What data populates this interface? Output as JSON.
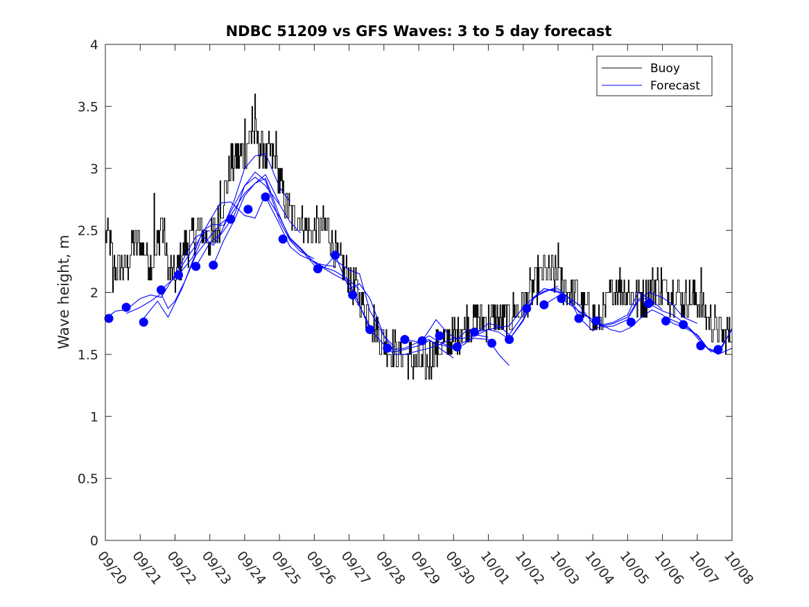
{
  "chart_data": {
    "type": "line",
    "title": "NDBC 51209 vs GFS Waves: 3 to 5 day forecast",
    "xlabel": "",
    "ylabel": "Wave height, m",
    "xlim": [
      0,
      18
    ],
    "ylim": [
      0,
      4
    ],
    "yticks": [
      0,
      0.5,
      1,
      1.5,
      2,
      2.5,
      3,
      3.5,
      4
    ],
    "ytick_labels": [
      "0",
      "0.5",
      "1",
      "1.5",
      "2",
      "2.5",
      "3",
      "3.5",
      "4"
    ],
    "xticks": [
      0,
      1,
      2,
      3,
      4,
      5,
      6,
      7,
      8,
      9,
      10,
      11,
      12,
      13,
      14,
      15,
      16,
      17,
      18
    ],
    "xtick_labels": [
      "09/20",
      "09/21",
      "09/22",
      "09/23",
      "09/24",
      "09/25",
      "09/26",
      "09/27",
      "09/28",
      "09/29",
      "09/30",
      "10/01",
      "10/02",
      "10/03",
      "10/04",
      "10/05",
      "10/06",
      "10/07",
      "10/08"
    ],
    "legend": {
      "location": "top-right",
      "entries": [
        {
          "name": "Buoy",
          "color": "#000000"
        },
        {
          "name": "Forecast",
          "color": "#0000ff"
        }
      ]
    },
    "colors": {
      "buoy": "#000000",
      "forecast": "#0000ff",
      "markers": "#0000ff"
    },
    "buoy": {
      "name": "Buoy",
      "anchors": [
        [
          0,
          2.5
        ],
        [
          0.3,
          2.2
        ],
        [
          0.6,
          2.2
        ],
        [
          0.8,
          2.4
        ],
        [
          1.0,
          2.4
        ],
        [
          1.2,
          2.3
        ],
        [
          1.4,
          2.2
        ],
        [
          1.6,
          2.6
        ],
        [
          1.8,
          2.2
        ],
        [
          2.0,
          2.1
        ],
        [
          2.2,
          2.3
        ],
        [
          2.4,
          2.4
        ],
        [
          2.6,
          2.5
        ],
        [
          2.8,
          2.5
        ],
        [
          3.0,
          2.4
        ],
        [
          3.2,
          2.5
        ],
        [
          3.4,
          2.8
        ],
        [
          3.6,
          3.0
        ],
        [
          3.8,
          3.1
        ],
        [
          4.0,
          3.1
        ],
        [
          4.2,
          3.3
        ],
        [
          4.4,
          3.2
        ],
        [
          4.6,
          3.1
        ],
        [
          4.8,
          3.1
        ],
        [
          5.0,
          2.9
        ],
        [
          5.2,
          2.7
        ],
        [
          5.4,
          2.6
        ],
        [
          5.6,
          2.6
        ],
        [
          5.8,
          2.5
        ],
        [
          6.0,
          2.5
        ],
        [
          6.2,
          2.5
        ],
        [
          6.4,
          2.5
        ],
        [
          6.6,
          2.3
        ],
        [
          6.8,
          2.2
        ],
        [
          7.0,
          2.1
        ],
        [
          7.2,
          2.0
        ],
        [
          7.4,
          1.9
        ],
        [
          7.6,
          1.8
        ],
        [
          7.8,
          1.7
        ],
        [
          8.0,
          1.6
        ],
        [
          8.2,
          1.55
        ],
        [
          8.4,
          1.5
        ],
        [
          8.6,
          1.5
        ],
        [
          8.8,
          1.45
        ],
        [
          9.0,
          1.45
        ],
        [
          9.2,
          1.4
        ],
        [
          9.4,
          1.5
        ],
        [
          9.6,
          1.55
        ],
        [
          9.8,
          1.6
        ],
        [
          10.0,
          1.65
        ],
        [
          10.2,
          1.7
        ],
        [
          10.4,
          1.75
        ],
        [
          10.6,
          1.8
        ],
        [
          10.8,
          1.8
        ],
        [
          11.0,
          1.8
        ],
        [
          11.2,
          1.8
        ],
        [
          11.4,
          1.75
        ],
        [
          11.6,
          1.8
        ],
        [
          11.8,
          1.85
        ],
        [
          12.0,
          1.9
        ],
        [
          12.2,
          2.0
        ],
        [
          12.4,
          2.1
        ],
        [
          12.6,
          2.15
        ],
        [
          12.8,
          2.15
        ],
        [
          13.0,
          2.1
        ],
        [
          13.2,
          2.05
        ],
        [
          13.4,
          2.0
        ],
        [
          13.6,
          1.95
        ],
        [
          13.8,
          1.85
        ],
        [
          14.0,
          1.8
        ],
        [
          14.2,
          1.75
        ],
        [
          14.4,
          1.9
        ],
        [
          14.6,
          2.05
        ],
        [
          14.8,
          2.05
        ],
        [
          15.0,
          2.0
        ],
        [
          15.2,
          1.95
        ],
        [
          15.4,
          1.95
        ],
        [
          15.6,
          2.0
        ],
        [
          15.8,
          2.05
        ],
        [
          16.0,
          2.05
        ],
        [
          16.2,
          2.0
        ],
        [
          16.4,
          2.0
        ],
        [
          16.6,
          1.95
        ],
        [
          16.8,
          1.95
        ],
        [
          17.0,
          1.95
        ],
        [
          17.2,
          1.85
        ],
        [
          17.4,
          1.75
        ],
        [
          17.6,
          1.7
        ],
        [
          17.8,
          1.65
        ],
        [
          18.0,
          1.7
        ]
      ],
      "spikes": [
        [
          4.3,
          3.6
        ],
        [
          4.2,
          3.5
        ],
        [
          4.0,
          3.4
        ],
        [
          4.55,
          3.2
        ],
        [
          4.9,
          3.3
        ],
        [
          1.4,
          2.8
        ],
        [
          3.3,
          2.9
        ],
        [
          3.6,
          3.2
        ],
        [
          12.6,
          2.3
        ],
        [
          13.0,
          2.4
        ],
        [
          17.1,
          2.2
        ],
        [
          9.2,
          1.3
        ],
        [
          9.3,
          1.3
        ],
        [
          0.2,
          2.0
        ]
      ],
      "noise_amplitude": 0.1
    },
    "forecast_runs": [
      {
        "name": "Forecast",
        "x": [
          0,
          0.3,
          0.6,
          1.0,
          1.3,
          1.6,
          2.0,
          2.3,
          2.6,
          3.0
        ],
        "y": [
          1.79,
          1.85,
          1.86,
          1.95,
          1.98,
          1.96,
          2.14,
          2.3,
          2.45,
          2.5
        ]
      },
      {
        "name": "Forecast",
        "x": [
          0.6,
          1.0,
          1.3,
          1.6,
          1.8,
          2.0,
          2.3,
          2.6,
          3.0,
          3.3,
          3.6,
          4.0,
          4.3,
          4.6,
          5.0
        ],
        "y": [
          1.83,
          1.88,
          1.93,
          1.99,
          1.87,
          1.93,
          2.1,
          2.3,
          2.45,
          2.55,
          2.62,
          2.8,
          2.88,
          2.95,
          2.72
        ]
      },
      {
        "name": "Forecast",
        "x": [
          1.1,
          1.5,
          1.8,
          2.2,
          2.5,
          2.8,
          3.1,
          3.4,
          3.7,
          4.0,
          4.3,
          4.6,
          5.0,
          5.3,
          5.6,
          6.0
        ],
        "y": [
          1.79,
          1.93,
          1.8,
          2.03,
          2.25,
          2.45,
          2.38,
          2.5,
          2.62,
          2.86,
          2.97,
          2.9,
          2.58,
          2.42,
          2.33,
          2.27
        ]
      },
      {
        "name": "Forecast",
        "x": [
          1.6,
          2.0,
          2.3,
          2.6,
          3.0,
          3.3,
          3.6,
          4.0,
          4.3,
          4.6,
          5.0,
          5.3,
          5.6,
          6.0,
          6.3,
          6.6
        ],
        "y": [
          2.02,
          2.12,
          2.26,
          2.38,
          2.58,
          2.72,
          2.73,
          2.62,
          2.6,
          2.79,
          2.61,
          2.44,
          2.36,
          2.24,
          2.22,
          2.21
        ]
      },
      {
        "name": "Forecast",
        "x": [
          2.1,
          2.5,
          2.8,
          3.1,
          3.4,
          3.7,
          4.0,
          4.3,
          4.6,
          5.0,
          5.3
        ],
        "y": [
          2.14,
          2.28,
          2.5,
          2.55,
          2.54,
          2.74,
          3.0,
          3.1,
          3.12,
          2.85,
          2.73
        ]
      },
      {
        "name": "Forecast",
        "x": [
          2.6,
          3.0,
          3.3,
          3.6,
          4.0,
          4.3,
          4.6,
          5.0,
          5.3,
          5.6
        ],
        "y": [
          2.21,
          2.4,
          2.47,
          2.65,
          2.86,
          2.93,
          2.86,
          2.71,
          2.57,
          2.48
        ]
      },
      {
        "name": "Forecast",
        "x": [
          3.1,
          3.4,
          3.7,
          4.0,
          4.3,
          4.6,
          5.0,
          5.3,
          5.6,
          6.0,
          6.3,
          6.6,
          7.0,
          7.3
        ],
        "y": [
          2.22,
          2.42,
          2.58,
          2.78,
          2.88,
          2.92,
          2.62,
          2.43,
          2.35,
          2.22,
          2.2,
          2.17,
          2.1,
          2.02
        ]
      },
      {
        "name": "Forecast",
        "x": [
          4.6,
          5.0,
          5.3,
          5.6,
          6.0,
          6.3,
          6.6,
          7.0,
          7.3,
          7.6,
          8.0,
          8.3
        ],
        "y": [
          2.77,
          2.55,
          2.37,
          2.3,
          2.25,
          2.2,
          2.3,
          2.03,
          2.07,
          1.95,
          1.65,
          1.56
        ]
      },
      {
        "name": "Forecast",
        "x": [
          5.6,
          6.0,
          6.3,
          6.6,
          7.0,
          7.3,
          7.6,
          8.0,
          8.3,
          8.6,
          9.0,
          9.3,
          9.6,
          10.0
        ],
        "y": [
          2.36,
          2.24,
          2.19,
          2.14,
          2.08,
          1.9,
          1.7,
          1.58,
          1.54,
          1.55,
          1.6,
          1.62,
          1.55,
          1.47
        ]
      },
      {
        "name": "Forecast",
        "x": [
          6.6,
          7.0,
          7.3,
          7.6,
          8.0,
          8.3,
          8.6,
          9.0,
          9.3,
          9.6,
          10.0,
          10.3,
          10.6,
          11.0
        ],
        "y": [
          2.26,
          2.18,
          2.15,
          1.85,
          1.65,
          1.52,
          1.54,
          1.57,
          1.61,
          1.58,
          1.63,
          1.63,
          1.66,
          1.64
        ]
      },
      {
        "name": "Forecast",
        "x": [
          7.1,
          7.4,
          7.7,
          8.0,
          8.3,
          8.6,
          9.0,
          9.3,
          9.6,
          10.0,
          10.3,
          10.6,
          11.0,
          11.3,
          11.6
        ],
        "y": [
          1.98,
          1.84,
          1.67,
          1.58,
          1.5,
          1.5,
          1.53,
          1.55,
          1.58,
          1.55,
          1.6,
          1.63,
          1.62,
          1.5,
          1.41
        ]
      },
      {
        "name": "Forecast",
        "x": [
          8.6,
          9.0,
          9.3,
          9.6,
          10.0,
          10.3,
          10.6,
          11.0,
          11.3,
          11.6,
          12.0,
          12.3,
          12.6,
          13.0
        ],
        "y": [
          1.62,
          1.6,
          1.65,
          1.6,
          1.55,
          1.58,
          1.65,
          1.7,
          1.72,
          1.73,
          1.88,
          1.96,
          2.0,
          2.05
        ]
      },
      {
        "name": "Forecast",
        "x": [
          9.1,
          9.5,
          9.8,
          10.1,
          10.4,
          10.7,
          11.0,
          11.3,
          11.6,
          12.0,
          12.3,
          12.6,
          13.0,
          13.3,
          13.6,
          14.0
        ],
        "y": [
          1.61,
          1.78,
          1.68,
          1.62,
          1.7,
          1.68,
          1.75,
          1.73,
          1.66,
          1.82,
          1.95,
          2.03,
          2.01,
          1.96,
          1.9,
          1.75
        ]
      },
      {
        "name": "Forecast",
        "x": [
          10.6,
          11.0,
          11.3,
          11.6,
          12.0,
          12.3,
          12.6,
          13.0,
          13.3,
          13.6,
          14.0,
          14.3,
          14.6,
          15.0,
          15.3,
          15.6
        ],
        "y": [
          1.68,
          1.7,
          1.68,
          1.62,
          1.78,
          1.96,
          2.03,
          2.0,
          1.96,
          1.8,
          1.69,
          1.74,
          1.76,
          1.82,
          2.0,
          1.95
        ]
      },
      {
        "name": "Forecast",
        "x": [
          11.6,
          12.0,
          12.3,
          12.6,
          13.0,
          13.3,
          13.6,
          14.0,
          14.3,
          14.6,
          15.0,
          15.3,
          15.6,
          16.0
        ],
        "y": [
          1.62,
          1.77,
          1.95,
          2.01,
          2.03,
          1.96,
          1.84,
          1.78,
          1.72,
          1.73,
          1.78,
          1.93,
          1.96,
          1.86
        ]
      },
      {
        "name": "Forecast",
        "x": [
          12.6,
          13.0,
          13.3,
          13.6,
          14.0,
          14.3,
          14.6,
          15.0,
          15.3,
          15.6,
          16.0,
          16.3,
          16.6,
          17.0
        ],
        "y": [
          1.9,
          1.97,
          1.91,
          1.85,
          1.78,
          1.73,
          1.75,
          1.8,
          1.94,
          2.0,
          1.96,
          1.9,
          1.8,
          1.75
        ]
      },
      {
        "name": "Forecast",
        "x": [
          14.1,
          14.5,
          14.8,
          15.1,
          15.4,
          15.7,
          16.0,
          16.3,
          16.6,
          17.0,
          17.3,
          17.6,
          18.0
        ],
        "y": [
          1.77,
          1.7,
          1.68,
          1.72,
          1.8,
          1.86,
          1.82,
          1.75,
          1.72,
          1.66,
          1.55,
          1.5,
          1.55
        ]
      },
      {
        "name": "Forecast",
        "x": [
          15.6,
          16.0,
          16.3,
          16.6,
          17.0,
          17.3,
          17.6,
          18.0
        ],
        "y": [
          1.91,
          1.85,
          1.82,
          1.76,
          1.65,
          1.55,
          1.52,
          1.7
        ]
      },
      {
        "name": "Forecast",
        "x": [
          16.1,
          16.5,
          16.8,
          17.1,
          17.4,
          17.7,
          18.0
        ],
        "y": [
          1.8,
          1.75,
          1.7,
          1.6,
          1.52,
          1.55,
          1.71
        ]
      }
    ],
    "forecast_markers": {
      "x": [
        0.1,
        0.6,
        1.1,
        1.6,
        2.1,
        2.6,
        3.1,
        3.6,
        4.1,
        4.6,
        5.1,
        6.1,
        6.6,
        7.1,
        7.6,
        8.1,
        8.6,
        9.1,
        9.6,
        10.1,
        10.6,
        11.1,
        11.6,
        12.1,
        12.6,
        13.1,
        13.6,
        14.1,
        15.1,
        15.6,
        16.1,
        16.6,
        17.1,
        17.6
      ],
      "y": [
        1.79,
        1.88,
        1.76,
        2.02,
        2.14,
        2.21,
        2.22,
        2.59,
        2.67,
        2.77,
        2.43,
        2.19,
        2.3,
        1.98,
        1.7,
        1.55,
        1.62,
        1.61,
        1.65,
        1.56,
        1.68,
        1.59,
        1.62,
        1.87,
        1.9,
        1.95,
        1.79,
        1.77,
        1.76,
        1.91,
        1.77,
        1.74,
        1.57,
        1.54
      ]
    }
  }
}
